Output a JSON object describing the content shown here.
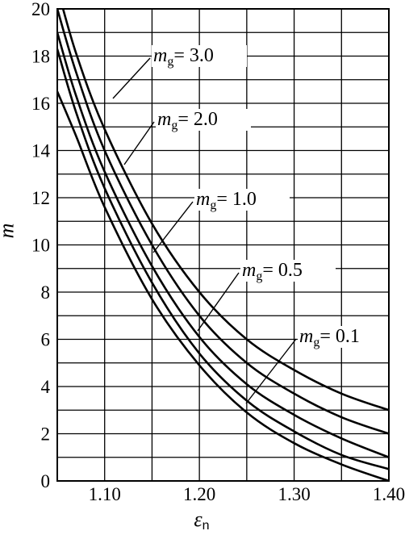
{
  "chart_data": {
    "type": "line",
    "xlabel_main": "ε",
    "xlabel_sub": "n",
    "ylabel": "m",
    "xlim": [
      1.05,
      1.4
    ],
    "ylim": [
      0,
      20
    ],
    "x_ticks": [
      "1.10",
      "1.20",
      "1.30",
      "1.40"
    ],
    "y_ticks": [
      "0",
      "2",
      "4",
      "6",
      "8",
      "10",
      "12",
      "14",
      "16",
      "18",
      "20"
    ],
    "grid": true,
    "series": [
      {
        "label_main": "m",
        "label_sub": "g",
        "label_value": "= 3.0",
        "x": [
          1.05,
          1.07,
          1.1,
          1.15,
          1.2,
          1.25,
          1.3,
          1.35,
          1.4
        ],
        "y": [
          20.9,
          18.1,
          14.9,
          10.9,
          8.0,
          6.0,
          4.7,
          3.7,
          3.0
        ]
      },
      {
        "label_main": "m",
        "label_sub": "g",
        "label_value": "= 2.0",
        "x": [
          1.05,
          1.07,
          1.1,
          1.15,
          1.2,
          1.25,
          1.3,
          1.35,
          1.4
        ],
        "y": [
          20.0,
          17.3,
          14.0,
          10.0,
          7.0,
          5.0,
          3.7,
          2.7,
          2.0
        ]
      },
      {
        "label_main": "m",
        "label_sub": "g",
        "label_value": "= 1.0",
        "x": [
          1.05,
          1.07,
          1.1,
          1.15,
          1.2,
          1.25,
          1.3,
          1.35,
          1.4
        ],
        "y": [
          19.0,
          16.3,
          13.1,
          9.1,
          6.1,
          4.1,
          2.8,
          1.8,
          1.0
        ]
      },
      {
        "label_main": "m",
        "label_sub": "g",
        "label_value": "= 0.5",
        "x": [
          1.05,
          1.07,
          1.1,
          1.15,
          1.2,
          1.25,
          1.3,
          1.35,
          1.4
        ],
        "y": [
          18.3,
          15.6,
          12.4,
          8.4,
          5.4,
          3.4,
          2.1,
          1.1,
          0.5
        ]
      },
      {
        "label_main": "m",
        "label_sub": "g",
        "label_value": "= 0.1",
        "x": [
          1.05,
          1.07,
          1.1,
          1.15,
          1.2,
          1.25,
          1.3,
          1.35,
          1.4
        ],
        "y": [
          16.5,
          14.6,
          11.6,
          7.7,
          4.9,
          2.9,
          1.6,
          0.7,
          0.0
        ]
      }
    ]
  }
}
